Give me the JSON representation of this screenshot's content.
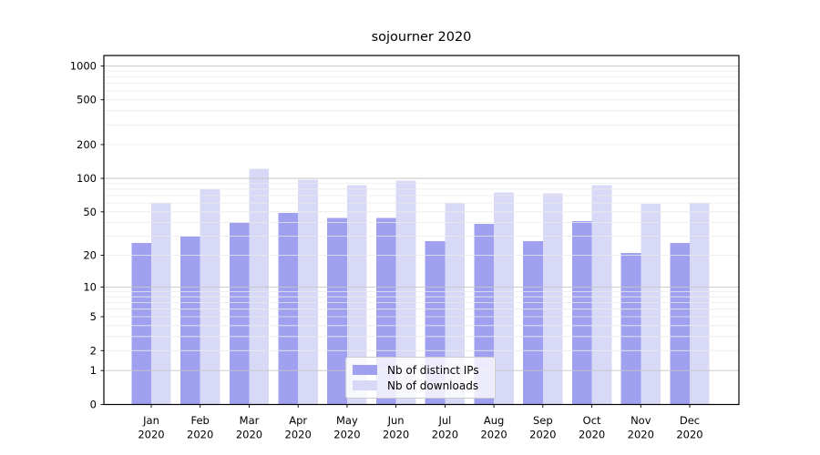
{
  "chart_data": {
    "type": "bar",
    "title": "sojourner 2020",
    "categories": [
      "Jan",
      "Feb",
      "Mar",
      "Apr",
      "May",
      "Jun",
      "Jul",
      "Aug",
      "Sep",
      "Oct",
      "Nov",
      "Dec"
    ],
    "x_tick_year": "2020",
    "series": [
      {
        "name": "Nb of distinct IPs",
        "color": "#a0a0f0",
        "values": [
          26,
          30,
          40,
          49,
          44,
          44,
          27,
          39,
          27,
          41,
          21,
          26
        ]
      },
      {
        "name": "Nb of downloads",
        "color": "#d8d8f7",
        "values": [
          60,
          80,
          122,
          97,
          87,
          95,
          60,
          75,
          73,
          87,
          59,
          60
        ]
      }
    ],
    "yticks": [
      0,
      1,
      2,
      5,
      10,
      20,
      50,
      100,
      200,
      500,
      1000
    ],
    "yscale": "log10(1+value)",
    "ylim": [
      0,
      1240
    ],
    "grid": "both",
    "grid_above_bars": true,
    "legend_position": "lower center inside plot",
    "colors": {
      "grid_major": "#c6c6c6",
      "grid_minor": "#ebebeb",
      "axis": "#000000",
      "background": "#ffffff"
    }
  }
}
